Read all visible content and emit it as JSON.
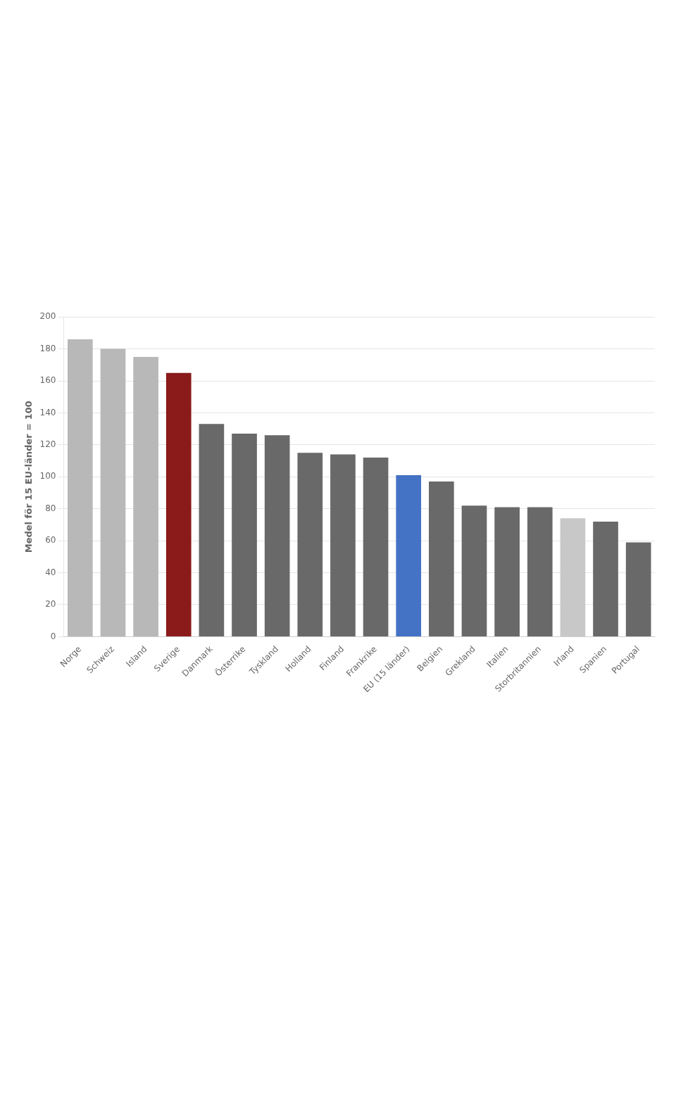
{
  "chart_data": {
    "type": "bar",
    "categories": [
      "Norge",
      "Schweiz",
      "Island",
      "Sverige",
      "Danmark",
      "Österrike",
      "Tyskland",
      "Holland",
      "Finland",
      "Frankrike",
      "EU (15 länder)",
      "Belgien",
      "Grekland",
      "Italien",
      "Storbritannien",
      "Irland",
      "Spanien",
      "Portugal"
    ],
    "values": [
      186,
      180,
      175,
      165,
      133,
      127,
      126,
      115,
      114,
      112,
      101,
      97,
      82,
      81,
      81,
      74,
      72,
      59
    ],
    "colors": [
      "#b8b8b8",
      "#b8b8b8",
      "#b8b8b8",
      "#8b1a1a",
      "#696969",
      "#696969",
      "#696969",
      "#696969",
      "#696969",
      "#696969",
      "#4472c4",
      "#696969",
      "#696969",
      "#696969",
      "#696969",
      "#c8c8c8",
      "#696969",
      "#696969"
    ],
    "ylabel": "Medel för 15 EU-länder = 100",
    "ylim": [
      0,
      200
    ],
    "yticks": [
      0,
      20,
      40,
      60,
      80,
      100,
      120,
      140,
      160,
      180,
      200
    ],
    "grid": true
  }
}
